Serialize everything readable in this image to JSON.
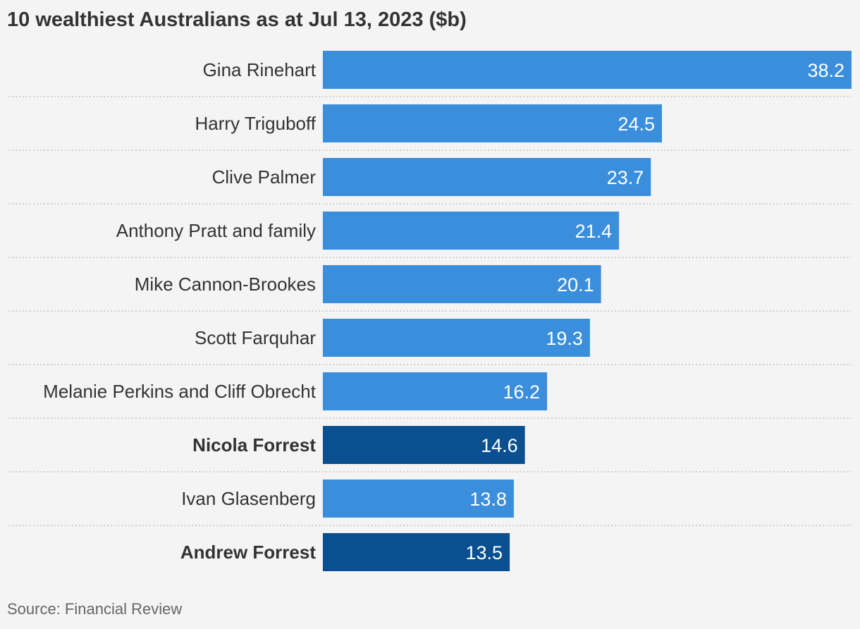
{
  "chart_data": {
    "type": "bar",
    "orientation": "horizontal",
    "title": "10 wealthiest Australians as at Jul 13, 2023 ($b)",
    "categories": [
      "Gina Rinehart",
      "Harry Triguboff",
      "Clive Palmer",
      "Anthony Pratt and family",
      "Mike Cannon-Brookes",
      "Scott Farquhar",
      "Melanie Perkins and Cliff Obrecht",
      "Nicola Forrest",
      "Ivan Glasenberg",
      "Andrew Forrest"
    ],
    "values": [
      38.2,
      24.5,
      23.7,
      21.4,
      20.1,
      19.3,
      16.2,
      14.6,
      13.8,
      13.5
    ],
    "value_labels": [
      "38.2",
      "24.5",
      "23.7",
      "21.4",
      "20.1",
      "19.3",
      "16.2",
      "14.6",
      "13.8",
      "13.5"
    ],
    "highlighted": [
      false,
      false,
      false,
      false,
      false,
      false,
      false,
      true,
      false,
      true
    ],
    "xlim": [
      0,
      38.2
    ],
    "grid": false,
    "legend": "none",
    "source": "Source: Financial Review"
  },
  "colors": {
    "bar": "#3a8edb",
    "bar_highlight": "#0a4f8f",
    "divider": "#c4c4c4",
    "label": "#333333",
    "value_text": "#ffffff"
  }
}
